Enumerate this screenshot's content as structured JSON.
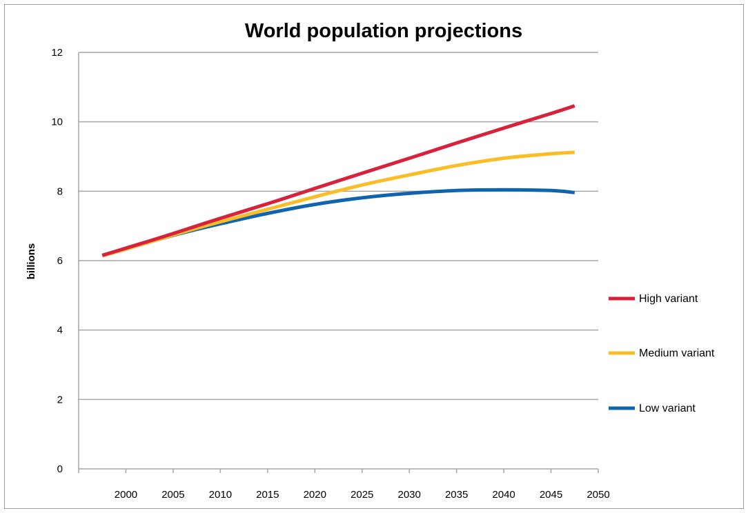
{
  "chart_data": {
    "type": "line",
    "title": "World population projections",
    "xlabel": "",
    "ylabel": "billions",
    "xlim": [
      1995,
      2050
    ],
    "ylim": [
      0,
      12
    ],
    "x_ticks": [
      2000,
      2005,
      2010,
      2015,
      2020,
      2025,
      2030,
      2035,
      2040,
      2045,
      2050
    ],
    "y_ticks": [
      0,
      2,
      4,
      6,
      8,
      10,
      12
    ],
    "grid": "horizontal",
    "legend_position": "right",
    "x": [
      1997.5,
      2000,
      2005,
      2010,
      2015,
      2020,
      2025,
      2030,
      2035,
      2040,
      2045,
      2047.5
    ],
    "series": [
      {
        "name": "High variant",
        "color": "#d8213b",
        "values": [
          6.15,
          6.36,
          6.78,
          7.22,
          7.64,
          8.08,
          8.52,
          8.95,
          9.39,
          9.82,
          10.24,
          10.46
        ]
      },
      {
        "name": "Medium variant",
        "color": "#f9bd28",
        "values": [
          6.14,
          6.33,
          6.74,
          7.12,
          7.48,
          7.84,
          8.18,
          8.47,
          8.74,
          8.95,
          9.08,
          9.12
        ]
      },
      {
        "name": "Low variant",
        "color": "#0f64ad",
        "values": [
          6.15,
          6.34,
          6.73,
          7.06,
          7.36,
          7.62,
          7.81,
          7.94,
          8.02,
          8.04,
          8.02,
          7.96
        ]
      }
    ]
  }
}
